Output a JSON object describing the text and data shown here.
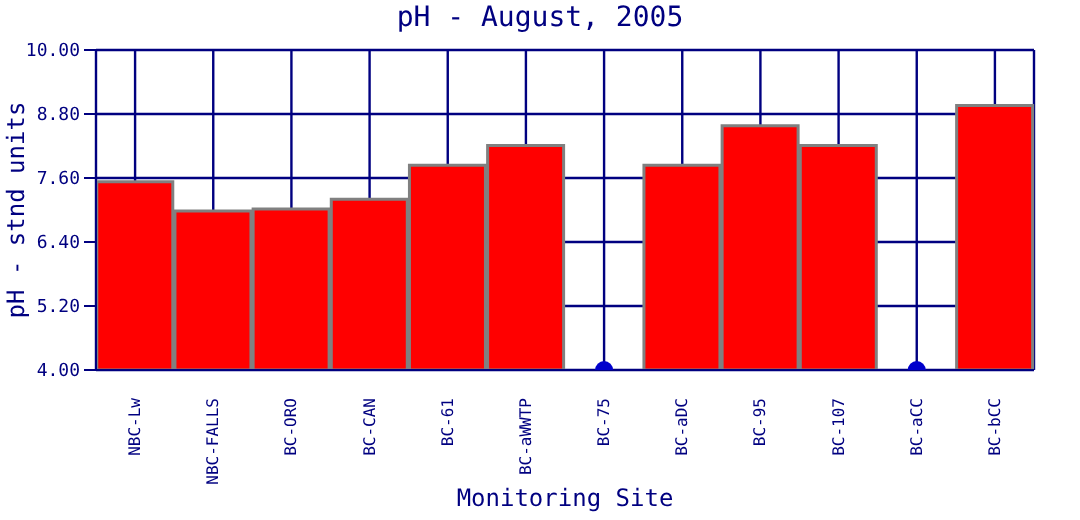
{
  "chart_data": {
    "type": "bar",
    "title": "pH - August, 2005",
    "xlabel": "Monitoring Site",
    "ylabel": "pH - stnd units",
    "categories": [
      "NBC-Lw",
      "NBC-FALLS",
      "BC-ORO",
      "BC-CAN",
      "BC-61",
      "BC-aWWTP",
      "BC-75",
      "BC-aDC",
      "BC-95",
      "BC-107",
      "BC-aCC",
      "BC-bCC"
    ],
    "series": [
      {
        "color": "#ff0000",
        "values": [
          7.53,
          6.98,
          7.02,
          7.2,
          7.84,
          8.21,
          null,
          7.84,
          8.58,
          8.21,
          null,
          8.96
        ]
      },
      {
        "type": "scatter",
        "color": "#0000cc",
        "values": [
          null,
          null,
          null,
          null,
          null,
          null,
          4.0,
          null,
          null,
          null,
          4.0,
          null
        ]
      }
    ],
    "ylim": [
      4,
      10
    ],
    "yticks": [
      {
        "value": 4,
        "label": "4.00"
      },
      {
        "value": 5.2,
        "label": "5.20"
      },
      {
        "value": 6.4,
        "label": "6.40"
      },
      {
        "value": 7.6,
        "label": "7.60"
      },
      {
        "value": 8.8,
        "label": "8.80"
      },
      {
        "value": 10,
        "label": "10.00"
      }
    ],
    "grid": true,
    "marker": "circle"
  }
}
